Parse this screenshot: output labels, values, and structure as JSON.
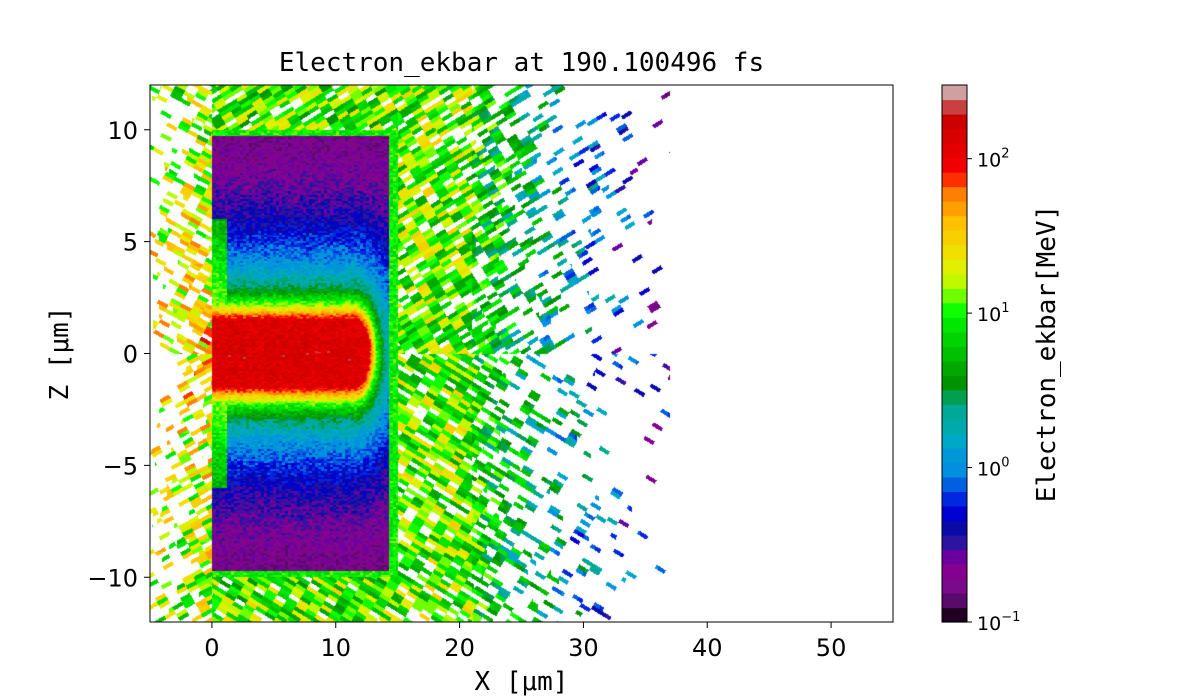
{
  "chart_data": {
    "type": "heatmap",
    "title": "Electron_ekbar at 190.100496 fs",
    "xlabel": "X  [$\\mu m$]",
    "xlabel_display": "X [μm]",
    "ylabel_display": "Z [μm]",
    "xlim": [
      -5,
      55
    ],
    "ylim": [
      -12,
      12
    ],
    "xticks": [
      0,
      10,
      20,
      30,
      40,
      50
    ],
    "xtick_labels": [
      "0",
      "10",
      "20",
      "30",
      "40",
      "50"
    ],
    "yticks": [
      10,
      5,
      0,
      -5,
      -10
    ],
    "ytick_labels": [
      "10",
      "5",
      "0",
      "−5",
      "−10"
    ],
    "target_box": {
      "x": [
        0,
        15
      ],
      "z": [
        -10,
        10
      ]
    },
    "colorbar": {
      "label": "Electron_ekbar[MeV]",
      "scale": "log",
      "range": [
        0.1,
        300
      ],
      "ticks": [
        0.1,
        1,
        10,
        100
      ],
      "tick_bases": [
        "10",
        "10",
        "10",
        "10"
      ],
      "tick_exps": [
        "−1",
        "0",
        "1",
        "2"
      ],
      "colors": [
        "#200020",
        "#5a0a6a",
        "#7a0a8a",
        "#85008f",
        "#6a00a0",
        "#2a14a0",
        "#0a0aaa",
        "#0000d0",
        "#0028e0",
        "#0060e0",
        "#0090e0",
        "#0098d8",
        "#00a8c8",
        "#00aaaa",
        "#00a898",
        "#00a050",
        "#009400",
        "#00a800",
        "#00c000",
        "#00d400",
        "#00e800",
        "#10ff00",
        "#70ff00",
        "#c0f800",
        "#e0f000",
        "#f0e000",
        "#f8d000",
        "#ffc000",
        "#ffa000",
        "#ff8000",
        "#ff3000",
        "#f00000",
        "#e40000",
        "#d80000",
        "#cc0000",
        "#c84040",
        "#d0a0a0"
      ]
    }
  }
}
